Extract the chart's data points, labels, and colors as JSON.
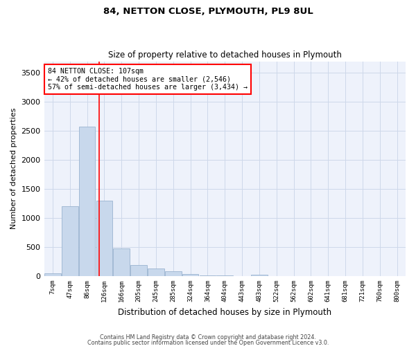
{
  "title1": "84, NETTON CLOSE, PLYMOUTH, PL9 8UL",
  "title2": "Size of property relative to detached houses in Plymouth",
  "xlabel": "Distribution of detached houses by size in Plymouth",
  "ylabel": "Number of detached properties",
  "bar_color": "#c8d8ec",
  "bar_edge_color": "#9ab4d0",
  "categories": [
    "7sqm",
    "47sqm",
    "86sqm",
    "126sqm",
    "166sqm",
    "205sqm",
    "245sqm",
    "285sqm",
    "324sqm",
    "364sqm",
    "404sqm",
    "443sqm",
    "483sqm",
    "522sqm",
    "562sqm",
    "602sqm",
    "641sqm",
    "681sqm",
    "721sqm",
    "760sqm",
    "800sqm"
  ],
  "values": [
    50,
    1200,
    2580,
    1300,
    480,
    190,
    130,
    80,
    40,
    15,
    10,
    5,
    30,
    0,
    0,
    0,
    0,
    0,
    0,
    0,
    0
  ],
  "ylim": [
    0,
    3700
  ],
  "yticks": [
    0,
    500,
    1000,
    1500,
    2000,
    2500,
    3000,
    3500
  ],
  "red_line_x": 2.72,
  "annotation_line1": "84 NETTON CLOSE: 107sqm",
  "annotation_line2": "← 42% of detached houses are smaller (2,546)",
  "annotation_line3": "57% of semi-detached houses are larger (3,434) →",
  "footer1": "Contains HM Land Registry data © Crown copyright and database right 2024.",
  "footer2": "Contains public sector information licensed under the Open Government Licence v3.0.",
  "grid_color": "#cdd8ea",
  "background_color": "#eef2fb",
  "fig_width": 6.0,
  "fig_height": 5.0,
  "dpi": 100
}
